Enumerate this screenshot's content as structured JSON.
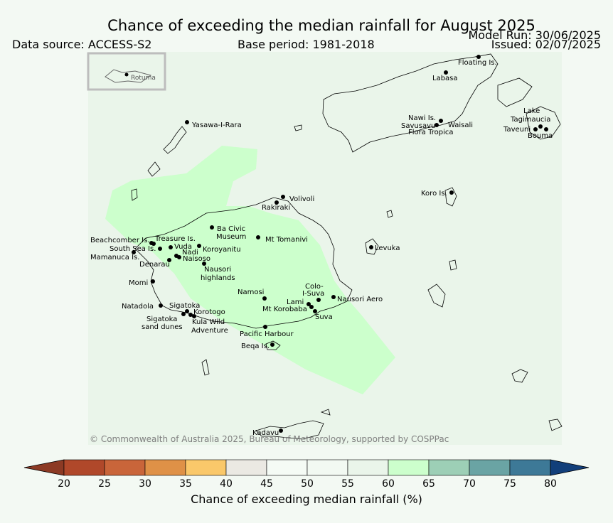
{
  "title": "Chance of exceeding the median rainfall for August 2025",
  "data_source": "Data source: ACCESS-S2",
  "base_period": "Base period: 1981-2018",
  "model_run": "Model Run: 30/06/2025",
  "issued": "Issued: 02/07/2025",
  "copyright": "© Commonwealth of Australia 2025, Bureau of Meteorology, supported by COSPPac",
  "inset_label": "Rotuma",
  "places": [
    {
      "name": "Floating Is.",
      "label": "Floating Is."
    },
    {
      "name": "Labasa",
      "label": "Labasa"
    },
    {
      "name": "Yasawa-I-Rara",
      "label": "Yasawa-I-Rara"
    },
    {
      "name": "Nawi Is.",
      "label": "Nawi Is."
    },
    {
      "name": "Savusavu",
      "label": "Savusavu"
    },
    {
      "name": "Waisali",
      "label": "Waisali"
    },
    {
      "name": "Flora Tropica",
      "label": "Flora Tropica"
    },
    {
      "name": "Lake Tagimaucia 1",
      "label": "Lake"
    },
    {
      "name": "Lake Tagimaucia 2",
      "label": "Tagimaucia"
    },
    {
      "name": "Taveuni",
      "label": "Taveuni"
    },
    {
      "name": "Bouma",
      "label": "Bouma"
    },
    {
      "name": "Koro Is.",
      "label": "Koro Is."
    },
    {
      "name": "Volivoli",
      "label": "Volivoli"
    },
    {
      "name": "Rakiraki",
      "label": "Rakiraki"
    },
    {
      "name": "Ba Civic Museum 1",
      "label": "Ba Civic"
    },
    {
      "name": "Ba Civic Museum 2",
      "label": "Museum"
    },
    {
      "name": "Mt Tomanivi",
      "label": "Mt Tomanivi"
    },
    {
      "name": "Beachcomber Is.",
      "label": "Beachcomber Is."
    },
    {
      "name": "Treasure Is.",
      "label": "Treasure Is."
    },
    {
      "name": "South Sea Is.",
      "label": "South Sea Is."
    },
    {
      "name": "Vuda",
      "label": "Vuda"
    },
    {
      "name": "Koroyanitu",
      "label": "Koroyanitu"
    },
    {
      "name": "Nadi",
      "label": "Nadi"
    },
    {
      "name": "Mamanuca Is.",
      "label": "Mamanuca Is."
    },
    {
      "name": "Naisoso",
      "label": "Naisoso"
    },
    {
      "name": "Denarau",
      "label": "Denarau"
    },
    {
      "name": "Nausori highlands 1",
      "label": "Nausori"
    },
    {
      "name": "Nausori highlands 2",
      "label": "highlands"
    },
    {
      "name": "Levuka",
      "label": "Levuka"
    },
    {
      "name": "Momi",
      "label": "Momi"
    },
    {
      "name": "Colo-I-Suva 1",
      "label": "Colo-"
    },
    {
      "name": "Colo-I-Suva 2",
      "label": "I-Suva"
    },
    {
      "name": "Namosi",
      "label": "Namosi"
    },
    {
      "name": "Nausori Aero",
      "label": "Nausori Aero"
    },
    {
      "name": "Lami",
      "label": "Lami"
    },
    {
      "name": "Natadola",
      "label": "Natadola"
    },
    {
      "name": "Sigatoka",
      "label": "Sigatoka"
    },
    {
      "name": "Mt Korobaba",
      "label": "Mt Korobaba"
    },
    {
      "name": "Korotogo",
      "label": "Korotogo"
    },
    {
      "name": "Suva",
      "label": "Suva"
    },
    {
      "name": "Sigatoka sand dunes 1",
      "label": "Sigatoka"
    },
    {
      "name": "Sigatoka sand dunes 2",
      "label": "sand dunes"
    },
    {
      "name": "Kula Wild Adventure 1",
      "label": "Kula Wild"
    },
    {
      "name": "Kula Wild Adventure 2",
      "label": "Adventure"
    },
    {
      "name": "Pacific Harbour",
      "label": "Pacific Harbour"
    },
    {
      "name": "Beqa Is.",
      "label": "Beqa Is."
    },
    {
      "name": "Kadavu",
      "label": "Kadavu"
    }
  ],
  "colorbar": {
    "label": "Chance of exceeding median rainfall (%)",
    "ticks": [
      "20",
      "25",
      "30",
      "35",
      "40",
      "45",
      "50",
      "55",
      "60",
      "65",
      "70",
      "75",
      "80"
    ],
    "colors": [
      "#b0482a",
      "#c9653a",
      "#df9147",
      "#fac86a",
      "#ebe9e3",
      "#f5fbf5",
      "#f2f9f2",
      "#eaf5ea",
      "#ccffcc",
      "#9dcfb6",
      "#6aa4a4",
      "#3d7997"
    ],
    "under_color": "#8c3a24",
    "over_color": "#123f7a"
  },
  "map_colors": {
    "background_fill": "#eaf5ea",
    "highlight_fill": "#ccffcc"
  }
}
